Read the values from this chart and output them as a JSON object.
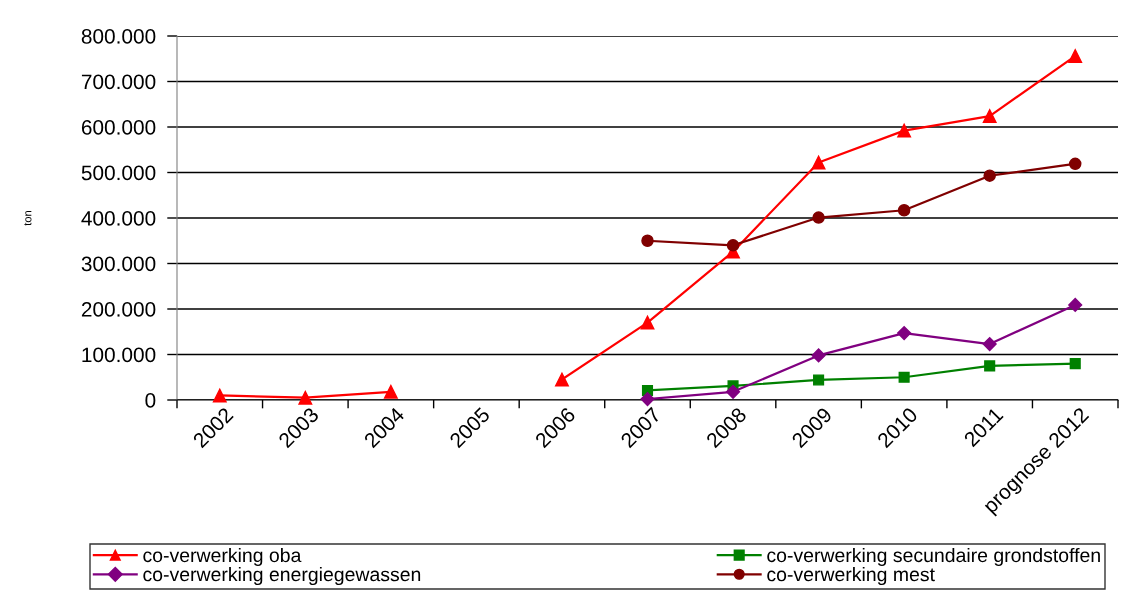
{
  "chart_data": {
    "type": "line",
    "ylabel": "ton",
    "categories": [
      "2002",
      "2003",
      "2004",
      "2005",
      "2006",
      "2007",
      "2008",
      "2009",
      "2010",
      "2011",
      "prognose 2012"
    ],
    "series": [
      {
        "name": "co-verwerking oba",
        "color": "#ff0000",
        "marker": "triangle",
        "values": [
          10000,
          5000,
          18000,
          null,
          45000,
          170000,
          326000,
          522000,
          592000,
          624000,
          756000
        ]
      },
      {
        "name": "co-verwerking secundaire grondstoffen",
        "color": "#008000",
        "marker": "square",
        "values": [
          null,
          null,
          null,
          null,
          null,
          21000,
          31000,
          44000,
          50000,
          75000,
          80000
        ]
      },
      {
        "name": "co-verwerking energiegewassen",
        "color": "#800080",
        "marker": "diamond",
        "values": [
          null,
          null,
          null,
          null,
          null,
          2000,
          18000,
          98000,
          147000,
          123000,
          209000
        ]
      },
      {
        "name": "co-verwerking mest",
        "color": "#800000",
        "marker": "circle",
        "values": [
          null,
          null,
          null,
          null,
          null,
          350000,
          340000,
          401000,
          417000,
          493000,
          519000
        ]
      }
    ],
    "ylim": [
      0,
      800000
    ],
    "yticks": [
      0,
      {
        "value": 100000,
        "label": "100.000"
      },
      {
        "value": 200000,
        "label": "200.000"
      },
      {
        "value": 300000,
        "label": "300.000"
      },
      {
        "value": 400000,
        "label": "400.000"
      },
      {
        "value": 500000,
        "label": "500.000"
      },
      {
        "value": 600000,
        "label": "600.000"
      },
      {
        "value": 700000,
        "label": "700.000"
      },
      {
        "value": 800000,
        "label": "800.000"
      }
    ],
    "grid": "y",
    "legend": "bottom",
    "line_style": "solid"
  }
}
